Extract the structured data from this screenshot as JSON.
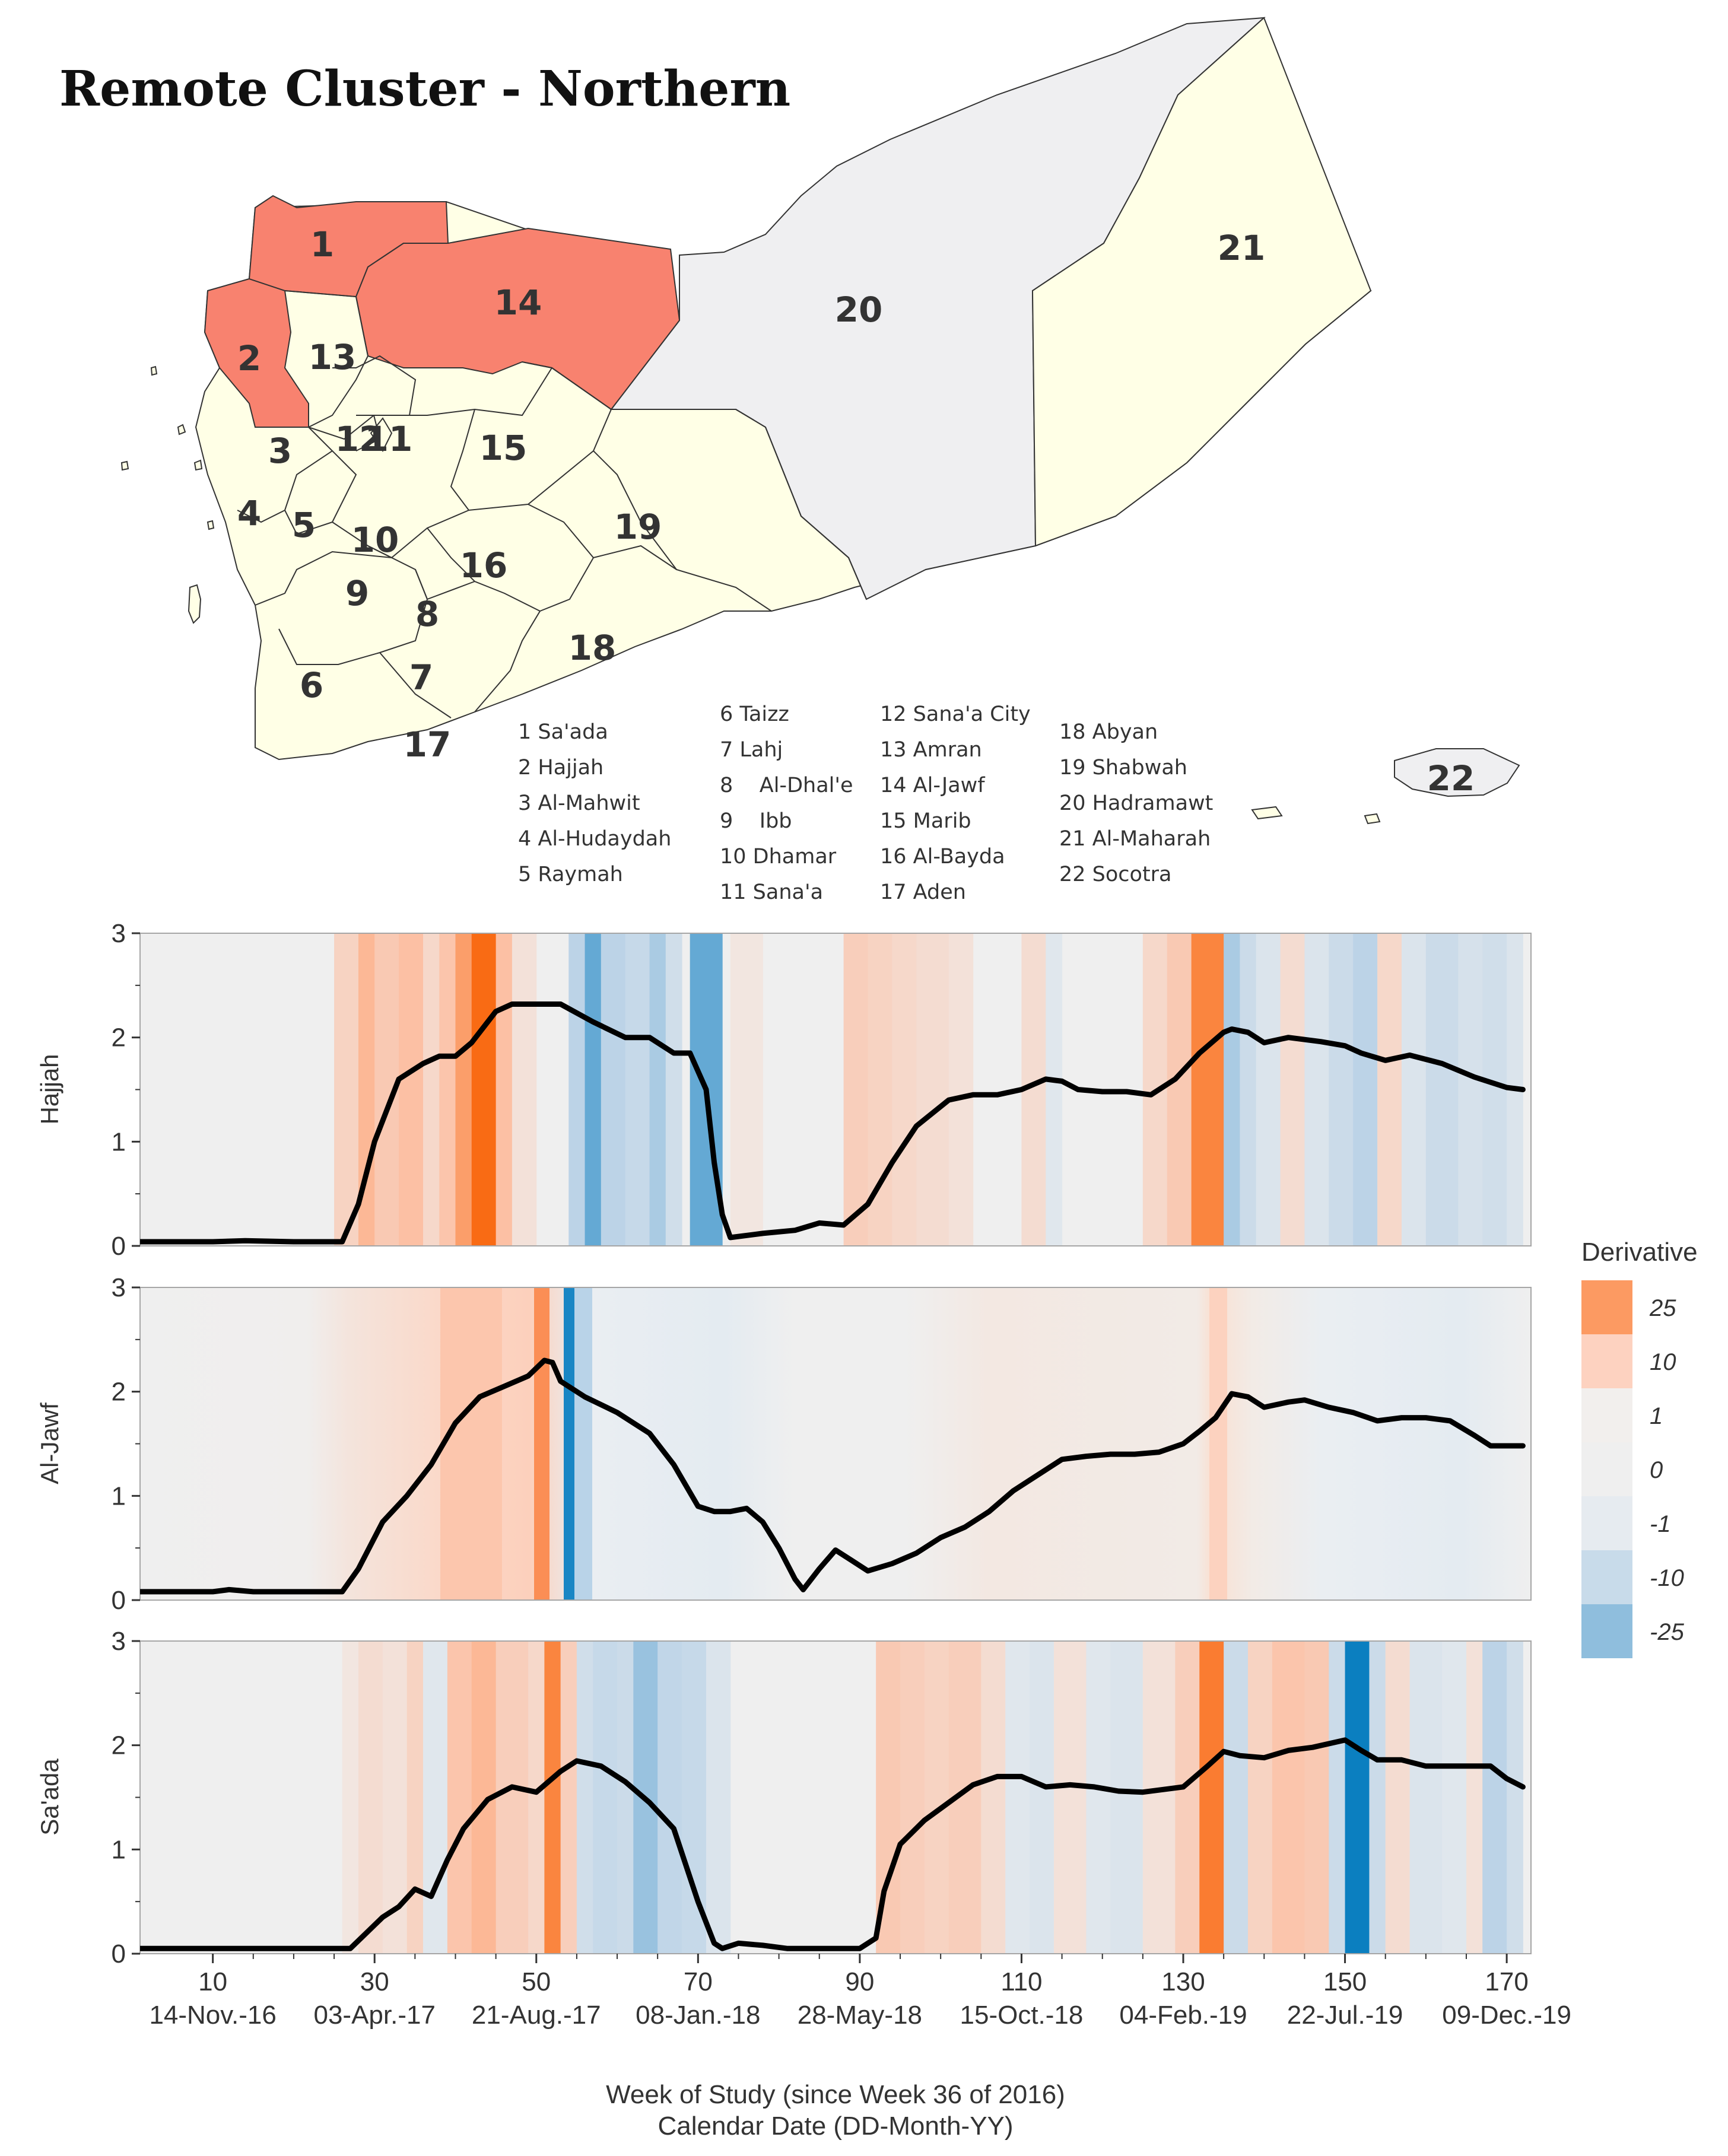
{
  "map": {
    "title": "Remote Cluster - Northern",
    "highlight_color": "#f8826f",
    "base_color": "#ffffe6",
    "hadramawt_color": "#efeff1",
    "labels": [
      "1",
      "2",
      "3",
      "4",
      "5",
      "6",
      "7",
      "8",
      "9",
      "10",
      "11",
      "12",
      "13",
      "14",
      "15",
      "16",
      "17",
      "18",
      "19",
      "20",
      "21",
      "22"
    ],
    "highlighted": [
      "1",
      "2",
      "14"
    ],
    "legend_items": [
      [
        "1 Sa'ada",
        "2 Hajjah",
        "3 Al-Mahwit",
        "4 Al-Hudaydah",
        "5 Raymah"
      ],
      [
        "6 Taizz",
        "7 Lahj",
        "8    Al-Dhal'e",
        "9    Ibb",
        "10 Dhamar",
        "11 Sana'a"
      ],
      [
        "12 Sana'a City",
        "13 Amran",
        "14 Al-Jawf",
        "15 Marib",
        "16 Al-Bayda",
        "17 Aden"
      ],
      [
        "18 Abyan",
        "19 Shabwah",
        "20 Hadramawt",
        "21 Al-Maharah",
        "22 Socotra"
      ]
    ]
  },
  "chart_data": {
    "type": "line",
    "x_title": "Week of Study (since Week 36 of 2016)",
    "x_title2": "Calendar Date (DD-Month-YY)",
    "xlim": [
      1,
      173
    ],
    "ylim": [
      0,
      3
    ],
    "xticks": [
      10,
      30,
      50,
      70,
      90,
      110,
      130,
      150,
      170
    ],
    "date_labels": [
      "14-Nov.-16",
      "03-Apr.-17",
      "21-Aug.-17",
      "08-Jan.-18",
      "28-May-18",
      "15-Oct.-18",
      "04-Feb.-19",
      "22-Jul.-19",
      "09-Dec.-19"
    ],
    "yticks": [
      "0",
      "1",
      "2",
      "3"
    ],
    "legend": {
      "title": "Derivative",
      "labels": [
        "25",
        "10",
        "1",
        "0",
        "-1",
        "-10",
        "-25"
      ],
      "colors": [
        "#fc9a62",
        "#fdd2c0",
        "#f2efed",
        "#efefef",
        "#e6ebf0",
        "#c8dbea",
        "#8fbedd"
      ]
    },
    "series": [
      {
        "name": "Hajjah",
        "x": [
          1,
          10,
          14,
          20,
          26,
          28,
          30,
          33,
          36,
          38,
          40,
          42,
          45,
          47,
          50,
          53,
          57,
          61,
          64,
          67,
          69,
          71,
          72,
          73,
          74,
          78,
          82,
          85,
          88,
          91,
          94,
          97,
          101,
          104,
          107,
          110,
          113,
          115,
          117,
          120,
          123,
          126,
          129,
          132,
          135,
          136,
          138,
          140,
          143,
          147,
          150,
          152,
          155,
          158,
          162,
          166,
          170,
          172
        ],
        "y": [
          0.04,
          0.04,
          0.05,
          0.04,
          0.04,
          0.4,
          1.0,
          1.6,
          1.75,
          1.82,
          1.82,
          1.95,
          2.25,
          2.32,
          2.32,
          2.32,
          2.15,
          2.0,
          2.0,
          1.85,
          1.85,
          1.5,
          0.8,
          0.3,
          0.08,
          0.12,
          0.15,
          0.22,
          0.2,
          0.4,
          0.8,
          1.15,
          1.4,
          1.45,
          1.45,
          1.5,
          1.6,
          1.58,
          1.5,
          1.48,
          1.48,
          1.45,
          1.6,
          1.85,
          2.05,
          2.08,
          2.05,
          1.95,
          2.0,
          1.96,
          1.92,
          1.85,
          1.78,
          1.83,
          1.75,
          1.62,
          1.52,
          1.5
        ],
        "bands": [
          [
            25,
            28,
            0.3
          ],
          [
            28,
            30,
            0.55
          ],
          [
            30,
            33,
            0.4
          ],
          [
            33,
            36,
            0.5
          ],
          [
            36,
            38,
            0.25
          ],
          [
            38,
            40,
            0.45
          ],
          [
            40,
            42,
            0.7
          ],
          [
            42,
            45,
            1.0
          ],
          [
            45,
            47,
            0.5
          ],
          [
            47,
            50,
            0.15
          ],
          [
            54,
            56,
            -0.5
          ],
          [
            56,
            58,
            -0.75
          ],
          [
            58,
            61,
            -0.5
          ],
          [
            61,
            64,
            -0.4
          ],
          [
            64,
            66,
            -0.55
          ],
          [
            66,
            68,
            -0.3
          ],
          [
            69,
            73,
            -0.75
          ],
          [
            74,
            78,
            0.1
          ],
          [
            88,
            91,
            0.35
          ],
          [
            91,
            94,
            0.3
          ],
          [
            94,
            97,
            0.25
          ],
          [
            97,
            101,
            0.2
          ],
          [
            101,
            104,
            0.15
          ],
          [
            110,
            113,
            0.2
          ],
          [
            113,
            115,
            -0.15
          ],
          [
            125,
            128,
            0.25
          ],
          [
            128,
            131,
            0.4
          ],
          [
            131,
            135,
            0.85
          ],
          [
            135,
            137,
            -0.55
          ],
          [
            137,
            139,
            -0.35
          ],
          [
            139,
            142,
            -0.2
          ],
          [
            142,
            145,
            0.2
          ],
          [
            145,
            148,
            -0.2
          ],
          [
            148,
            151,
            -0.35
          ],
          [
            151,
            154,
            -0.5
          ],
          [
            154,
            157,
            0.25
          ],
          [
            157,
            160,
            -0.2
          ],
          [
            160,
            164,
            -0.35
          ],
          [
            164,
            167,
            -0.25
          ],
          [
            167,
            170,
            -0.3
          ],
          [
            170,
            172,
            -0.2
          ]
        ]
      },
      {
        "name": "Al-Jawf",
        "x": [
          1,
          10,
          12,
          15,
          20,
          26,
          28,
          31,
          34,
          37,
          40,
          43,
          46,
          49,
          51,
          52,
          53,
          54,
          56,
          60,
          64,
          67,
          70,
          72,
          74,
          76,
          78,
          80,
          82,
          83,
          85,
          87,
          89,
          91,
          94,
          97,
          100,
          103,
          106,
          109,
          112,
          115,
          118,
          121,
          124,
          127,
          130,
          132,
          134,
          136,
          138,
          140,
          143,
          145,
          148,
          151,
          154,
          157,
          160,
          163,
          166,
          168,
          172
        ],
        "y": [
          0.08,
          0.08,
          0.1,
          0.08,
          0.08,
          0.08,
          0.3,
          0.75,
          1.0,
          1.3,
          1.7,
          1.95,
          2.05,
          2.15,
          2.3,
          2.28,
          2.1,
          2.05,
          1.95,
          1.8,
          1.6,
          1.3,
          0.9,
          0.85,
          0.85,
          0.88,
          0.75,
          0.5,
          0.2,
          0.1,
          0.3,
          0.48,
          0.38,
          0.28,
          0.35,
          0.45,
          0.6,
          0.7,
          0.85,
          1.05,
          1.2,
          1.35,
          1.38,
          1.4,
          1.4,
          1.42,
          1.5,
          1.62,
          1.75,
          1.98,
          1.95,
          1.85,
          1.9,
          1.92,
          1.85,
          1.8,
          1.72,
          1.75,
          1.75,
          1.72,
          1.58,
          1.48,
          1.48
        ]
      },
      {
        "name": "Sa'ada",
        "x": [
          1,
          10,
          20,
          27,
          29,
          31,
          33,
          35,
          37,
          39,
          41,
          44,
          47,
          50,
          53,
          55,
          58,
          61,
          64,
          67,
          70,
          72,
          73,
          75,
          78,
          81,
          84,
          87,
          90,
          92,
          93,
          95,
          98,
          101,
          104,
          107,
          110,
          113,
          116,
          119,
          122,
          125,
          128,
          130,
          133,
          135,
          137,
          140,
          143,
          146,
          150,
          152,
          154,
          157,
          160,
          164,
          168,
          170,
          172
        ],
        "y": [
          0.05,
          0.05,
          0.05,
          0.05,
          0.2,
          0.35,
          0.45,
          0.62,
          0.55,
          0.9,
          1.2,
          1.48,
          1.6,
          1.55,
          1.75,
          1.85,
          1.8,
          1.65,
          1.45,
          1.2,
          0.5,
          0.1,
          0.05,
          0.1,
          0.08,
          0.05,
          0.05,
          0.05,
          0.05,
          0.15,
          0.6,
          1.05,
          1.28,
          1.45,
          1.62,
          1.7,
          1.7,
          1.6,
          1.62,
          1.6,
          1.56,
          1.55,
          1.58,
          1.6,
          1.8,
          1.94,
          1.9,
          1.88,
          1.95,
          1.98,
          2.05,
          1.95,
          1.86,
          1.86,
          1.8,
          1.8,
          1.8,
          1.68,
          1.6
        ],
        "bands": [
          [
            26,
            28,
            0.1
          ],
          [
            28,
            31,
            0.2
          ],
          [
            31,
            34,
            0.15
          ],
          [
            34,
            36,
            0.3
          ],
          [
            36,
            39,
            -0.15
          ],
          [
            39,
            42,
            0.45
          ],
          [
            42,
            45,
            0.55
          ],
          [
            45,
            49,
            0.35
          ],
          [
            49,
            51,
            0.25
          ],
          [
            51,
            53,
            0.85
          ],
          [
            53,
            55,
            0.35
          ],
          [
            55,
            57,
            -0.3
          ],
          [
            57,
            60,
            -0.4
          ],
          [
            60,
            62,
            -0.35
          ],
          [
            62,
            65,
            -0.6
          ],
          [
            65,
            68,
            -0.45
          ],
          [
            68,
            71,
            -0.4
          ],
          [
            71,
            74,
            -0.2
          ],
          [
            92,
            95,
            0.4
          ],
          [
            95,
            98,
            0.35
          ],
          [
            98,
            101,
            0.3
          ],
          [
            101,
            105,
            0.35
          ],
          [
            105,
            108,
            0.2
          ],
          [
            108,
            111,
            -0.15
          ],
          [
            111,
            114,
            -0.2
          ],
          [
            114,
            118,
            0.15
          ],
          [
            118,
            121,
            -0.15
          ],
          [
            121,
            125,
            -0.2
          ],
          [
            125,
            129,
            0.15
          ],
          [
            129,
            132,
            0.35
          ],
          [
            132,
            135,
            0.9
          ],
          [
            135,
            138,
            -0.35
          ],
          [
            138,
            141,
            0.3
          ],
          [
            141,
            145,
            0.45
          ],
          [
            145,
            148,
            0.4
          ],
          [
            148,
            150,
            -0.35
          ],
          [
            150,
            153,
            -1.0
          ],
          [
            153,
            155,
            -0.35
          ],
          [
            155,
            158,
            0.2
          ],
          [
            158,
            162,
            -0.2
          ],
          [
            162,
            165,
            -0.15
          ],
          [
            165,
            167,
            0.15
          ],
          [
            167,
            170,
            -0.5
          ],
          [
            170,
            172,
            -0.3
          ]
        ]
      }
    ]
  }
}
